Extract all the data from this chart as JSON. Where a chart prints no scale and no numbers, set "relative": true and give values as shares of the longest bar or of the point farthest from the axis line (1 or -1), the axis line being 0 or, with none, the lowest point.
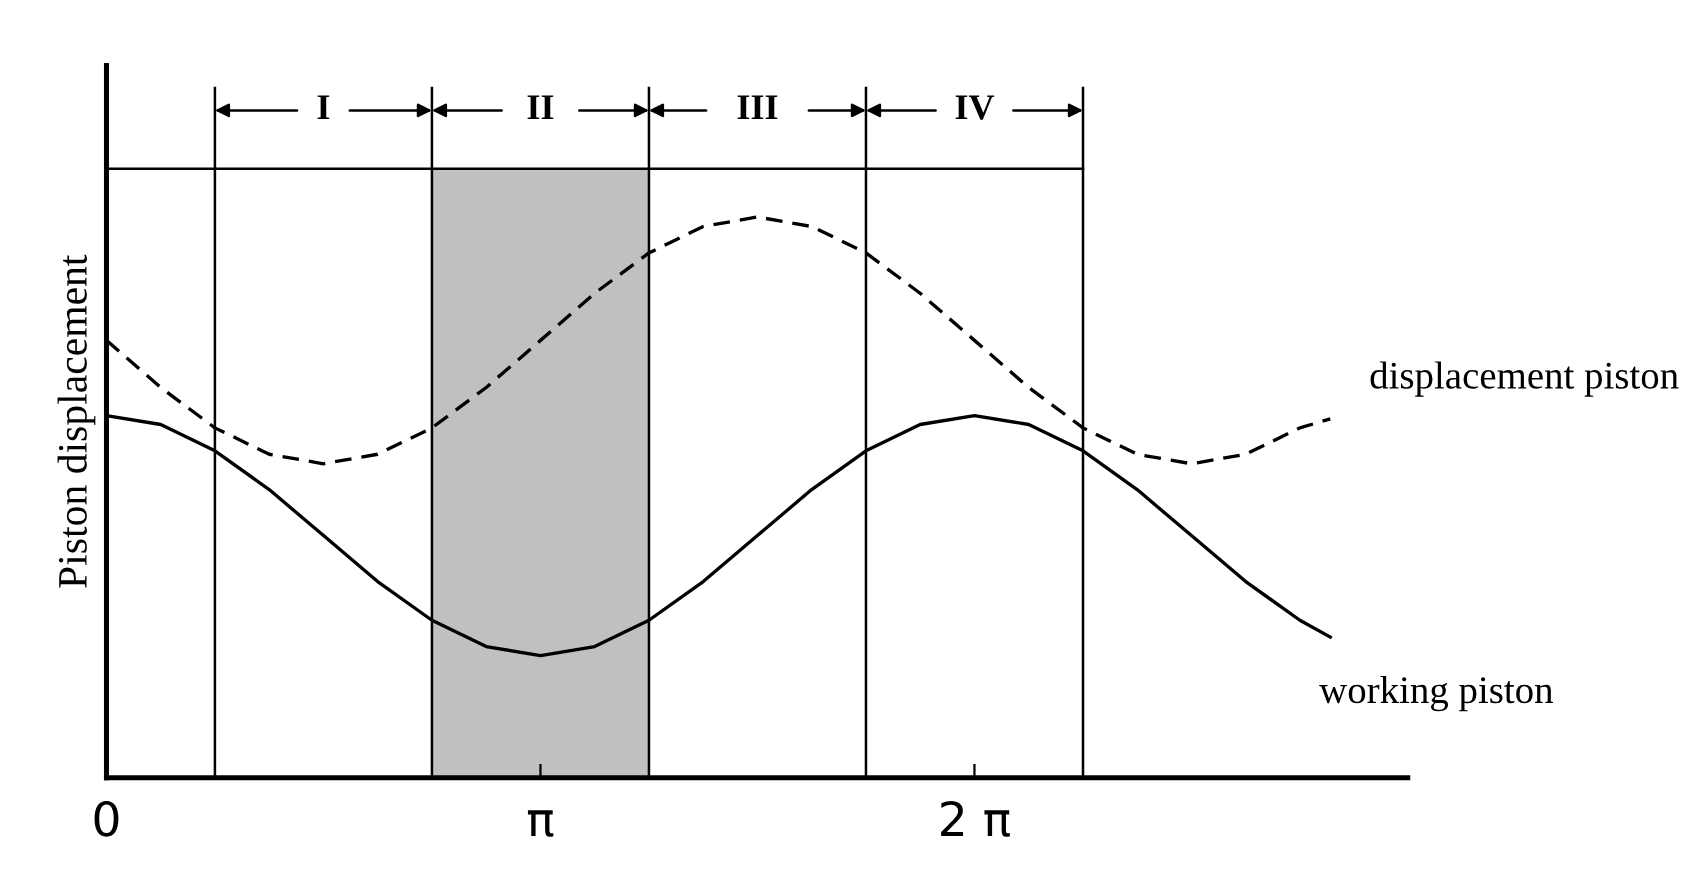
{
  "chart_data": {
    "type": "line",
    "relative": true,
    "ylabel": "Piston displacement",
    "x": [
      0,
      0.393,
      0.785,
      1.178,
      1.571,
      1.963,
      2.356,
      2.749,
      3.142,
      3.534,
      3.927,
      4.32,
      4.712,
      5.105,
      5.498,
      5.89,
      6.283,
      6.676,
      7.069,
      7.461,
      7.854,
      8.247,
      8.639,
      8.859
    ],
    "xlim": [
      0,
      9.42
    ],
    "xticks": [
      0,
      {
        "value": 3.1416,
        "label": "π"
      },
      {
        "value": 6.2832,
        "label": "2 π"
      }
    ],
    "series": [
      {
        "name": "displacement piston",
        "color": "#000000",
        "line_style": "dashed",
        "values": [
          0.78,
          0.696,
          0.624,
          0.577,
          0.56,
          0.577,
          0.624,
          0.696,
          0.78,
          0.864,
          0.936,
          0.983,
          1.0,
          0.983,
          0.936,
          0.864,
          0.78,
          0.696,
          0.624,
          0.577,
          0.56,
          0.577,
          0.624,
          0.64
        ]
      },
      {
        "name": "working piston",
        "color": "#000000",
        "line_style": "solid",
        "values": [
          0.646,
          0.63,
          0.583,
          0.514,
          0.432,
          0.35,
          0.281,
          0.234,
          0.218,
          0.234,
          0.281,
          0.35,
          0.432,
          0.514,
          0.583,
          0.63,
          0.646,
          0.63,
          0.583,
          0.514,
          0.432,
          0.35,
          0.281,
          0.251
        ]
      }
    ],
    "bands": [
      {
        "axis": "x",
        "from": 2.356,
        "to": 3.927,
        "color": "#c0c0c0"
      }
    ],
    "ref_lines": [
      {
        "axis": "y",
        "value": 1.086
      },
      {
        "axis": "x",
        "value": 0.785
      },
      {
        "axis": "x",
        "value": 2.356
      },
      {
        "axis": "x",
        "value": 3.927
      },
      {
        "axis": "x",
        "value": 5.498
      },
      {
        "axis": "x",
        "value": 7.069
      }
    ],
    "annotations": [
      "I",
      "II",
      "III",
      "IV"
    ],
    "grid": false,
    "legend": false
  }
}
